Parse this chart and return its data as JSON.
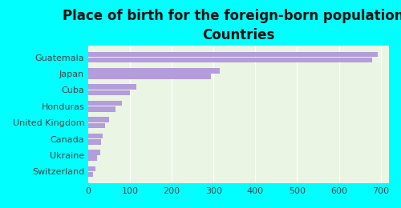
{
  "title": "Place of birth for the foreign-born population -\nCountries",
  "categories": [
    "Switzerland",
    "Ukraine",
    "Canada",
    "United Kingdom",
    "Honduras",
    "Cuba",
    "Japan",
    "Guatemala"
  ],
  "values1": [
    18,
    28,
    35,
    50,
    80,
    115,
    315,
    693
  ],
  "values2": [
    12,
    22,
    30,
    40,
    65,
    100,
    293,
    680
  ],
  "bar_color": "#b39ddb",
  "bg_color": "#00ffff",
  "plot_bg": "#eaf5e4",
  "xlim": [
    0,
    720
  ],
  "xticks": [
    0,
    100,
    200,
    300,
    400,
    500,
    600,
    700
  ],
  "title_fontsize": 12,
  "tick_fontsize": 8,
  "label_fontsize": 8
}
